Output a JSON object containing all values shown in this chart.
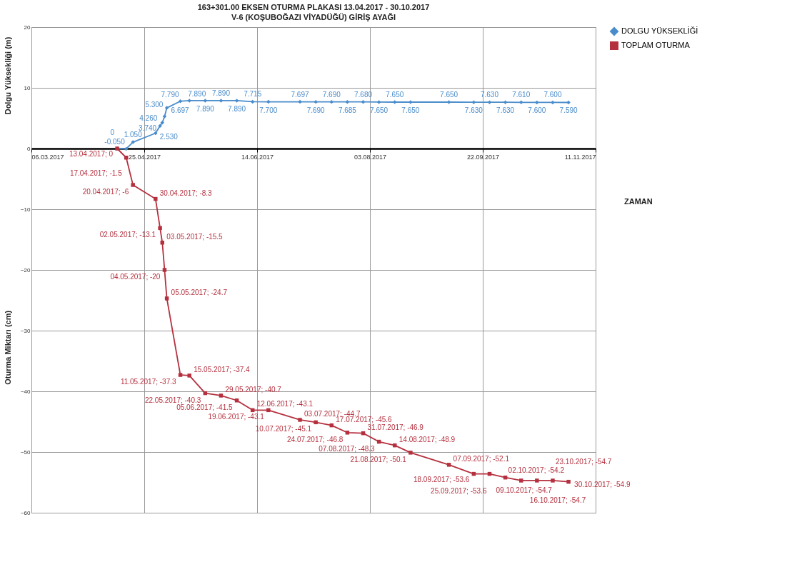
{
  "chart_data": {
    "type": "line",
    "title": "163+301.00 EKSEN OTURMA PLAKASI  13.04.2017 -        30.10.2017",
    "subtitle": "V-6 (KOŞUBOĞAZI VİYADÜĞÜ) GİRİŞ AYAĞI",
    "xlabel": "ZAMAN",
    "ylabel": "Oturma Miktarı  (cm)",
    "annotations": [
      "Dolgu Yüksekliği (m)"
    ],
    "x": [
      "2017-04-13",
      "2017-04-17",
      "2017-04-20",
      "2017-04-30",
      "2017-05-02",
      "2017-05-03",
      "2017-05-04",
      "2017-05-05",
      "2017-05-11",
      "2017-05-15",
      "2017-05-22",
      "2017-05-29",
      "2017-06-05",
      "2017-06-12",
      "2017-06-19",
      "2017-07-03",
      "2017-07-10",
      "2017-07-17",
      "2017-07-24",
      "2017-07-31",
      "2017-08-07",
      "2017-08-14",
      "2017-08-21",
      "2017-09-07",
      "2017-09-18",
      "2017-09-25",
      "2017-10-02",
      "2017-10-09",
      "2017-10-16",
      "2017-10-23",
      "2017-10-30"
    ],
    "series": [
      {
        "name": "DOLGU YÜKSEKLİĞİ",
        "color": "#4a8ccb",
        "marker": "diamond",
        "values": [
          0,
          -0.05,
          1.05,
          2.53,
          3.74,
          4.26,
          5.3,
          6.697,
          7.79,
          7.89,
          7.89,
          7.89,
          7.89,
          7.715,
          7.7,
          7.697,
          7.69,
          7.69,
          7.685,
          7.68,
          7.65,
          7.65,
          7.65,
          7.65,
          7.63,
          7.63,
          7.63,
          7.61,
          7.6,
          7.6,
          7.59
        ],
        "value_labels": [
          "0",
          "-0.050",
          "1.050",
          "2.530",
          "3.740",
          "4.260",
          "5.300",
          "6.697",
          "7.790",
          "7.890",
          "7.890",
          "7.890",
          "7.890",
          "7.715",
          "7.700",
          "7.697",
          "7.690",
          "7.690",
          "7.685",
          "7.680",
          "7.650",
          "7.650",
          "7.650",
          "7.650",
          "7.630",
          "7.630",
          "7.630",
          "7.610",
          "7.600",
          "7.600",
          "7.590"
        ]
      },
      {
        "name": "TOPLAM OTURMA",
        "color": "#b5303e",
        "marker": "square",
        "values": [
          0,
          -1.5,
          -6,
          -8.3,
          -13.1,
          -15.5,
          -20,
          -24.7,
          -37.3,
          -37.4,
          -40.3,
          -40.7,
          -41.5,
          -43.1,
          -43.1,
          -44.7,
          -45.1,
          -45.6,
          -46.8,
          -46.9,
          -48.3,
          -48.9,
          -50.1,
          -52.1,
          -53.6,
          -53.6,
          -54.2,
          -54.7,
          -54.7,
          -54.7,
          -54.9
        ],
        "value_labels": [
          "13.04.2017; 0",
          "17.04.2017; -1.5",
          "20.04.2017; -6",
          "30.04.2017; -8.3",
          "02.05.2017; -13.1",
          "03.05.2017; -15.5",
          "04.05.2017; -20",
          "05.05.2017; -24.7",
          "11.05.2017; -37.3",
          "15.05.2017; -37.4",
          "22.05.2017; -40.3",
          "29.05.2017; -40.7",
          "05.06.2017; -41.5",
          "12.06.2017; -43.1",
          "19.06.2017; -43.1",
          "03.07.2017; -44.7",
          "10.07.2017; -45.1",
          "17.07.2017; -45.6",
          "24.07.2017; -46.8",
          "31.07.2017; -46.9",
          "07.08.2017; -48.3",
          "14.08.2017; -48.9",
          "21.08.2017; -50.1",
          "07.09.2017; -52.1",
          "18.09.2017; -53.6",
          "25.09.2017; -53.6",
          "02.10.2017; -54.2",
          "09.10.2017; -54.7",
          "16.10.2017; -54.7",
          "23.10.2017; -54.7",
          "30.10.2017; -54.9"
        ]
      }
    ],
    "xlim": [
      "2017-03-06",
      "2017-11-11"
    ],
    "xticks": [
      {
        "value": "2017-03-06",
        "label": "06.03.2017"
      },
      {
        "value": "2017-04-25",
        "label": "25.04.2017"
      },
      {
        "value": "2017-06-14",
        "label": "14.06.2017"
      },
      {
        "value": "2017-08-03",
        "label": "03.08.2017"
      },
      {
        "value": "2017-09-22",
        "label": "22.09.2017"
      },
      {
        "value": "2017-11-11",
        "label": "11.11.2017"
      }
    ],
    "ylim": [
      -60,
      20
    ],
    "yticks": [
      -60,
      -50,
      -40,
      -30,
      -20,
      -10,
      0,
      10,
      20
    ],
    "grid": true,
    "legend": "right",
    "line_style": "solid"
  }
}
